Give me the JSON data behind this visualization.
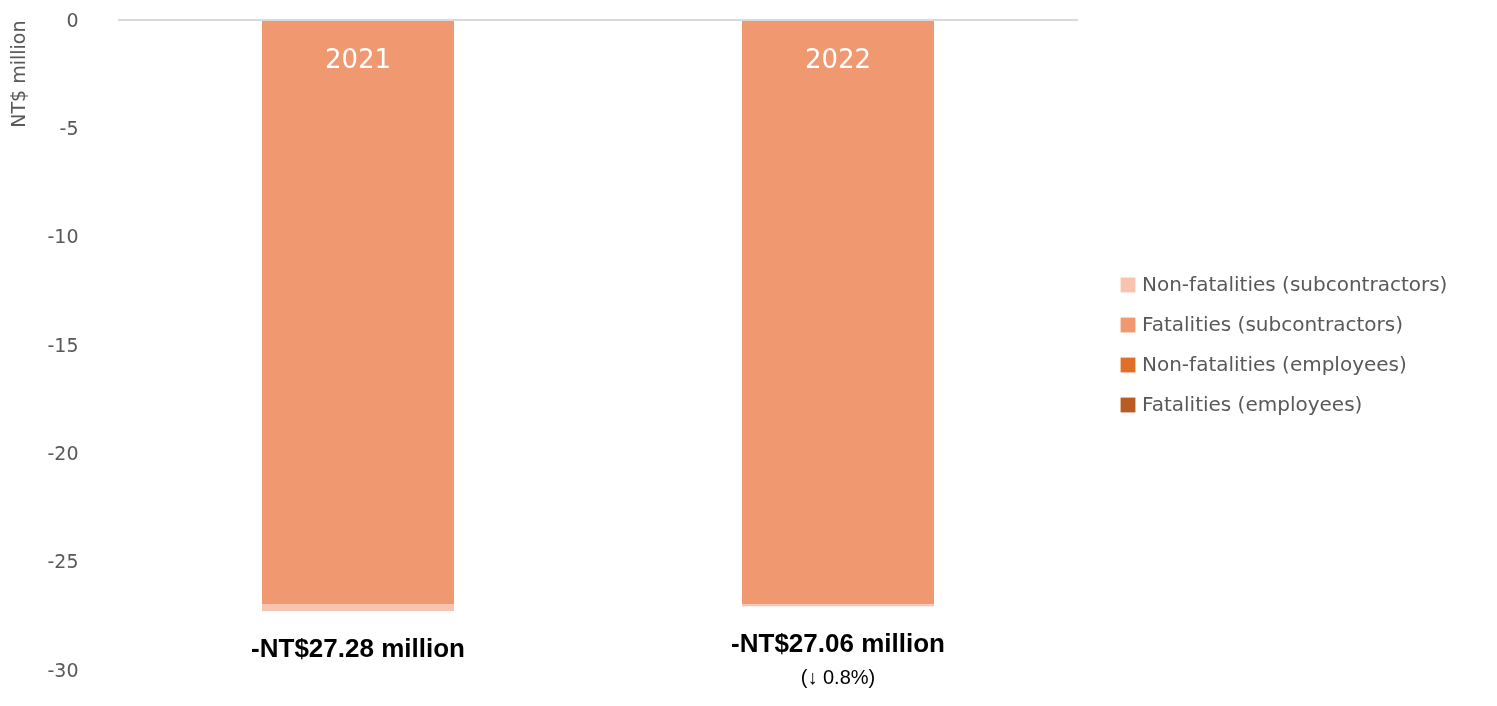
{
  "chart_data": {
    "type": "bar",
    "stacked": true,
    "ylabel": "NT$ million",
    "categories": [
      "2021",
      "2022"
    ],
    "series": [
      {
        "name": "Fatalities (employees)",
        "color": "#b85c24",
        "values": [
          0,
          0
        ]
      },
      {
        "name": "Non-fatalities (employees)",
        "color": "#e07028",
        "values": [
          0,
          0
        ]
      },
      {
        "name": "Fatalities (subcontractors)",
        "color": "#f0986f",
        "values": [
          -26.95,
          -26.96
        ]
      },
      {
        "name": "Non-fatalities (subcontractors)",
        "color": "#f8c4b0",
        "values": [
          -0.33,
          -0.1
        ]
      }
    ],
    "ylim": [
      -30,
      0
    ],
    "yticks": [
      0,
      -5,
      -10,
      -15,
      -20,
      -25,
      -30
    ],
    "grid": false,
    "legend": "right",
    "annotations": [
      {
        "text": "-NT$27.28 million",
        "x": "2021",
        "y": -27.28
      },
      {
        "text": "-NT$27.06 million",
        "x": "2022",
        "y": -27.06
      },
      "(↓ 0.8%)"
    ]
  }
}
